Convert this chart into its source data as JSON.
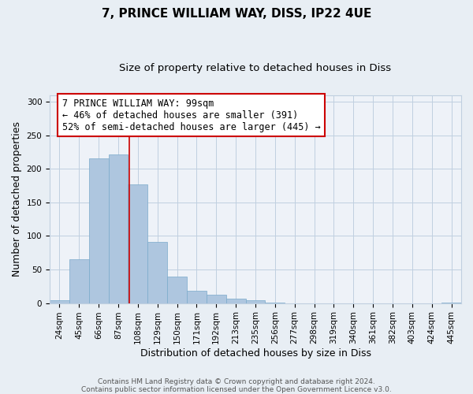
{
  "title": "7, PRINCE WILLIAM WAY, DISS, IP22 4UE",
  "subtitle": "Size of property relative to detached houses in Diss",
  "xlabel": "Distribution of detached houses by size in Diss",
  "ylabel": "Number of detached properties",
  "bin_labels": [
    "24sqm",
    "45sqm",
    "66sqm",
    "87sqm",
    "108sqm",
    "129sqm",
    "150sqm",
    "171sqm",
    "192sqm",
    "213sqm",
    "235sqm",
    "256sqm",
    "277sqm",
    "298sqm",
    "319sqm",
    "340sqm",
    "361sqm",
    "382sqm",
    "403sqm",
    "424sqm",
    "445sqm"
  ],
  "bar_heights": [
    4,
    65,
    215,
    222,
    177,
    91,
    39,
    18,
    13,
    6,
    4,
    1,
    0,
    0,
    0,
    0,
    0,
    0,
    0,
    0,
    1
  ],
  "bar_color": "#aec6df",
  "bar_edge_color": "#7aaacb",
  "vline_color": "#cc0000",
  "annotation_box_text": "7 PRINCE WILLIAM WAY: 99sqm\n← 46% of detached houses are smaller (391)\n52% of semi-detached houses are larger (445) →",
  "annotation_box_color": "#cc0000",
  "ylim": [
    0,
    310
  ],
  "yticks": [
    0,
    50,
    100,
    150,
    200,
    250,
    300
  ],
  "footer_line1": "Contains HM Land Registry data © Crown copyright and database right 2024.",
  "footer_line2": "Contains public sector information licensed under the Open Government Licence v3.0.",
  "bg_color": "#e8eef4",
  "plot_bg_color": "#eef2f8",
  "grid_color": "#c0cfe0",
  "title_fontsize": 11,
  "subtitle_fontsize": 9.5,
  "axis_label_fontsize": 9,
  "tick_fontsize": 7.5,
  "footer_fontsize": 6.5,
  "annot_fontsize": 8.5
}
